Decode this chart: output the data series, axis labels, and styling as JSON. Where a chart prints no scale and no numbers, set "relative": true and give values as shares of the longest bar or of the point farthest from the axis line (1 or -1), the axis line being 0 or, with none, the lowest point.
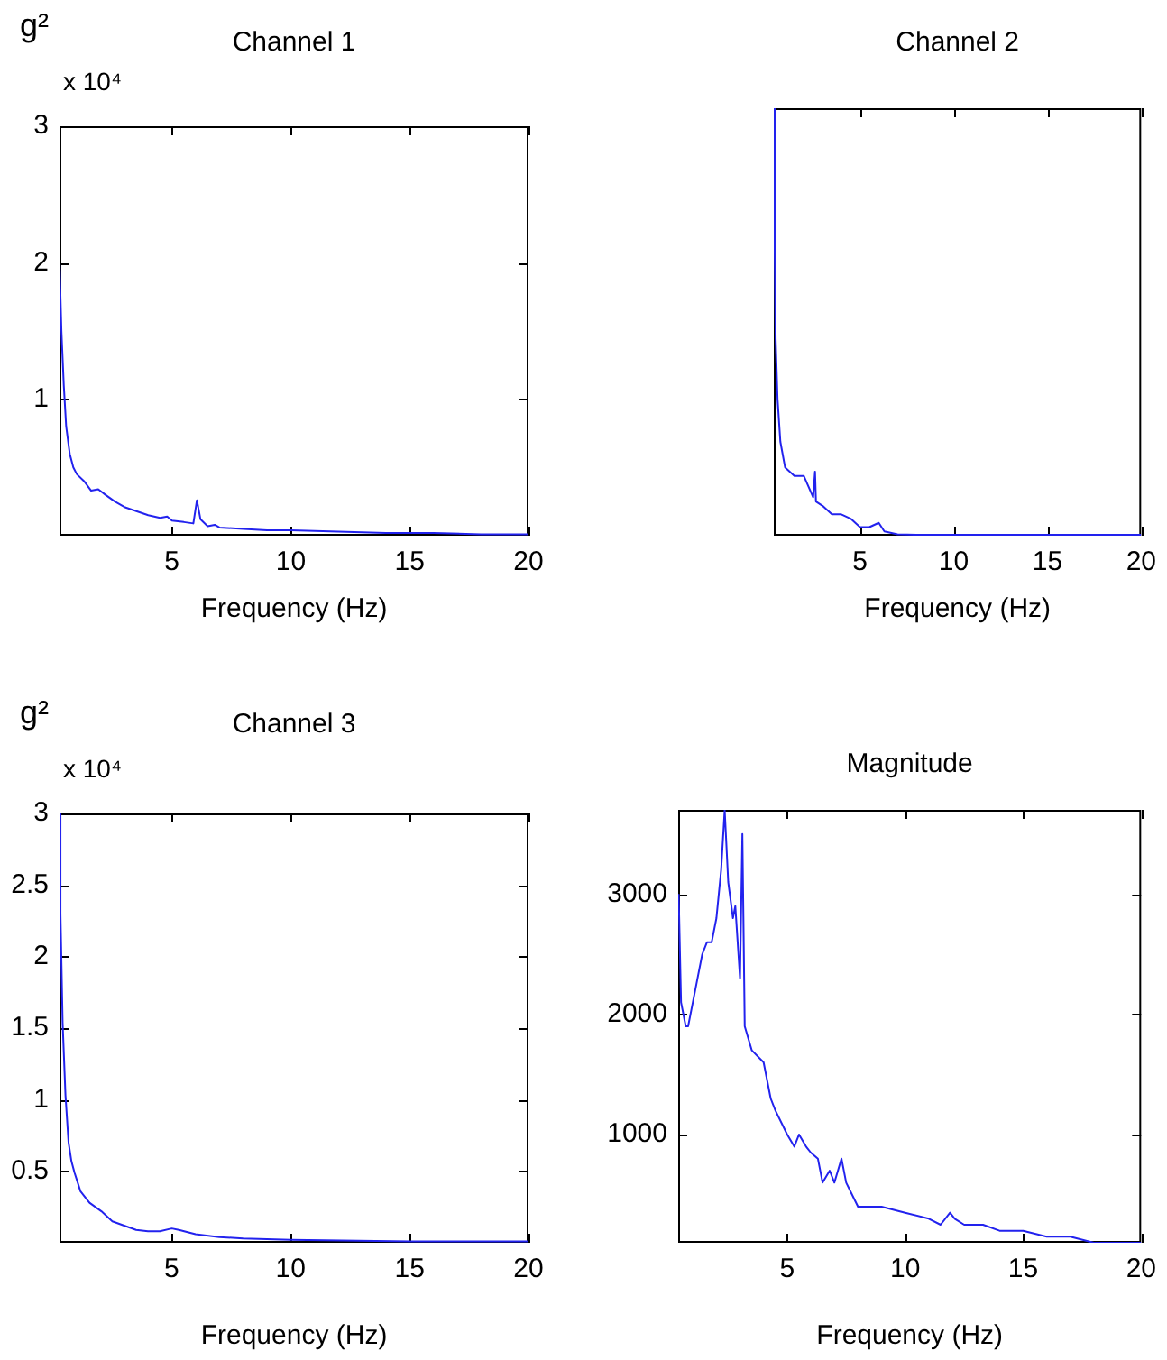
{
  "chart_data": [
    {
      "type": "line",
      "title": "Channel 1",
      "xlabel": "Frequency (Hz)",
      "ylabel": "g²",
      "annotations": [
        "x 10⁴"
      ],
      "xlim": [
        0.27,
        20
      ],
      "xticks": [
        5,
        10,
        15,
        20
      ],
      "ylim": [
        0,
        3
      ],
      "yticks": [
        1,
        2,
        3
      ],
      "grid": false,
      "legend": false,
      "x": [
        0.27,
        0.35,
        0.45,
        0.55,
        0.7,
        0.85,
        1.0,
        1.3,
        1.6,
        1.9,
        2.2,
        2.6,
        3.0,
        3.5,
        4.0,
        4.5,
        4.8,
        5.0,
        5.5,
        5.9,
        6.05,
        6.2,
        6.5,
        6.8,
        7,
        8,
        9,
        10,
        12,
        14,
        16,
        18,
        20
      ],
      "series": [
        {
          "color": "#2222ee",
          "values": [
            2.0,
            1.5,
            1.1,
            0.8,
            0.6,
            0.5,
            0.45,
            0.4,
            0.33,
            0.34,
            0.3,
            0.25,
            0.21,
            0.18,
            0.15,
            0.13,
            0.14,
            0.11,
            0.1,
            0.09,
            0.26,
            0.12,
            0.07,
            0.08,
            0.06,
            0.05,
            0.04,
            0.04,
            0.03,
            0.02,
            0.02,
            0.01,
            0.01
          ]
        }
      ]
    },
    {
      "type": "line",
      "title": "Channel 2",
      "xlabel": "Frequency (Hz)",
      "relative": true,
      "xlim": [
        0.4,
        20
      ],
      "xticks": [
        5,
        10,
        15,
        20
      ],
      "grid": false,
      "legend": false,
      "x": [
        0.4,
        0.45,
        0.5,
        0.6,
        0.75,
        1.0,
        1.5,
        2.0,
        2.3,
        2.5,
        2.6,
        2.65,
        3.0,
        3.5,
        4.0,
        4.5,
        5,
        5.5,
        6.0,
        6.3,
        7,
        8,
        10,
        12,
        15,
        20
      ],
      "series": [
        {
          "color": "#2222ee",
          "values": [
            1.0,
            0.66,
            0.46,
            0.32,
            0.22,
            0.16,
            0.14,
            0.14,
            0.11,
            0.09,
            0.15,
            0.08,
            0.07,
            0.05,
            0.05,
            0.04,
            0.02,
            0.02,
            0.03,
            0.01,
            0.003,
            0.002,
            0.002,
            0.002,
            0.002,
            0.002
          ]
        }
      ]
    },
    {
      "type": "line",
      "title": "Channel 3",
      "xlabel": "Frequency (Hz)",
      "ylabel": "g²",
      "annotations": [
        "x 10⁴"
      ],
      "xlim": [
        0.28,
        20
      ],
      "xticks": [
        5,
        10,
        15,
        20
      ],
      "ylim": [
        0,
        3
      ],
      "yticks": [
        0.5,
        1,
        1.5,
        2,
        2.5,
        3
      ],
      "grid": false,
      "legend": false,
      "x": [
        0.28,
        0.32,
        0.41,
        0.53,
        0.66,
        0.78,
        0.91,
        1.16,
        1.54,
        2.04,
        2.5,
        3,
        3.5,
        4,
        4.5,
        5,
        5.3,
        6,
        7,
        8,
        10,
        15,
        20
      ],
      "series": [
        {
          "color": "#2222ee",
          "values": [
            3.0,
            2.3,
            1.54,
            1.03,
            0.7,
            0.57,
            0.49,
            0.36,
            0.28,
            0.22,
            0.15,
            0.12,
            0.09,
            0.08,
            0.08,
            0.1,
            0.09,
            0.06,
            0.04,
            0.03,
            0.02,
            0.01,
            0.01
          ]
        }
      ]
    },
    {
      "type": "line",
      "title": "Magnitude",
      "xlabel": "Frequency (Hz)",
      "xlim": [
        0.38,
        20
      ],
      "xticks": [
        5,
        10,
        15,
        20
      ],
      "ylim": [
        100,
        3700
      ],
      "yticks": [
        1000,
        2000,
        3000
      ],
      "grid": false,
      "legend": false,
      "x": [
        0.4,
        0.5,
        0.7,
        0.8,
        1.0,
        1.2,
        1.4,
        1.6,
        1.8,
        2.0,
        2.2,
        2.35,
        2.5,
        2.7,
        2.8,
        3.0,
        3.1,
        3.2,
        3.5,
        4.0,
        4.3,
        4.5,
        5.0,
        5.3,
        5.5,
        5.8,
        6.0,
        6.3,
        6.5,
        6.8,
        7.0,
        7.3,
        7.5,
        8,
        9,
        10,
        11,
        11.5,
        11.9,
        12.1,
        12.5,
        13,
        13.3,
        14,
        15,
        16,
        17,
        18,
        19,
        20
      ],
      "series": [
        {
          "color": "#2222ee",
          "values": [
            3000,
            2100,
            1900,
            1900,
            2100,
            2300,
            2500,
            2600,
            2600,
            2800,
            3200,
            3700,
            3100,
            2800,
            2900,
            2300,
            3500,
            1900,
            1700,
            1600,
            1300,
            1200,
            1000,
            900,
            1000,
            900,
            850,
            800,
            600,
            700,
            600,
            800,
            600,
            400,
            400,
            350,
            300,
            250,
            350,
            300,
            250,
            250,
            250,
            200,
            200,
            150,
            150,
            100,
            100,
            100
          ]
        }
      ]
    }
  ]
}
